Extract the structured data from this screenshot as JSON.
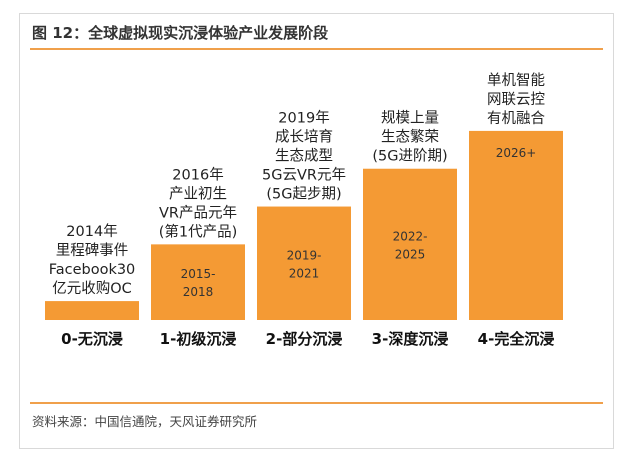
{
  "title": "图 12：全球虚拟现实沉浸体验产业发展阶段",
  "source": "资料来源：中国信通院，天风证券研究所",
  "colors": {
    "bar": "#f49a34",
    "rule": "#f0a04b"
  },
  "chart_data": {
    "type": "bar",
    "title": "",
    "xlabel": "",
    "ylabel": "",
    "categories": [
      "0-无沉浸",
      "1-初级沉浸",
      "2-部分沉浸",
      "3-深度沉浸",
      "4-完全沉浸"
    ],
    "values": [
      0.5,
      2,
      3,
      4,
      5
    ],
    "ylim": [
      0,
      5.5
    ],
    "bar_labels": [
      [
        "",
        ""
      ],
      [
        "2015-",
        "2018"
      ],
      [
        "2019-",
        "2021"
      ],
      [
        "2022-",
        "2025"
      ],
      [
        "2026+",
        ""
      ]
    ],
    "descriptions": [
      [
        "2014年",
        "里程碑事件",
        "Facebook30",
        "亿元收购OC"
      ],
      [
        "2016年",
        "产业初生",
        "VR产品元年",
        "(第1代产品)"
      ],
      [
        "2019年",
        "成长培育",
        "生态成型",
        "5G云VR元年",
        "(5G起步期)"
      ],
      [
        "规模上量",
        "生态繁荣",
        "(5G进阶期)"
      ],
      [
        "单机智能",
        "网联云控",
        "有机融合"
      ]
    ]
  }
}
